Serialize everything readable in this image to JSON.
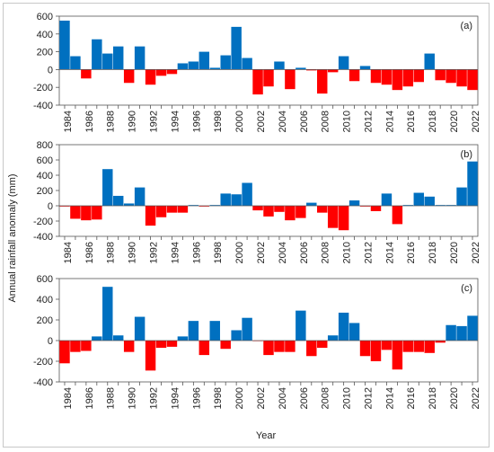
{
  "chart_data": {
    "type": "bar",
    "xlabel": "Year",
    "ylabel": "Annual rainfall anomaly (mm)",
    "positive_color": "#0070c0",
    "negative_color": "#ff0000",
    "years": [
      1984,
      1985,
      1986,
      1987,
      1988,
      1989,
      1990,
      1991,
      1992,
      1993,
      1994,
      1995,
      1996,
      1997,
      1998,
      1999,
      2000,
      2001,
      2002,
      2003,
      2004,
      2005,
      2006,
      2007,
      2008,
      2009,
      2010,
      2011,
      2012,
      2013,
      2014,
      2015,
      2016,
      2017,
      2018,
      2019,
      2020,
      2021,
      2022
    ],
    "xtick_labels": [
      "1984",
      "1986",
      "1988",
      "1990",
      "1992",
      "1994",
      "1996",
      "1998",
      "2000",
      "2002",
      "2004",
      "2006",
      "2008",
      "2010",
      "2012",
      "2014",
      "2016",
      "2018",
      "2020",
      "2022"
    ],
    "panels": [
      {
        "label": "(a)",
        "ylim": [
          -400,
          600
        ],
        "yticks": [
          -400,
          -200,
          0,
          200,
          400,
          600
        ],
        "values": [
          550,
          150,
          -100,
          340,
          180,
          260,
          -150,
          260,
          -170,
          -70,
          -50,
          70,
          90,
          200,
          20,
          160,
          480,
          130,
          -280,
          -190,
          90,
          -220,
          20,
          -10,
          -270,
          -30,
          150,
          -130,
          40,
          -150,
          -170,
          -230,
          -190,
          -140,
          180,
          -120,
          -150,
          -190,
          -230
        ]
      },
      {
        "label": "(b)",
        "ylim": [
          -400,
          800
        ],
        "yticks": [
          -400,
          -200,
          0,
          200,
          400,
          600,
          800
        ],
        "values": [
          -10,
          -170,
          -190,
          -180,
          480,
          130,
          30,
          240,
          -260,
          -150,
          -90,
          -90,
          10,
          -10,
          10,
          160,
          150,
          300,
          -60,
          -140,
          -80,
          -190,
          -160,
          40,
          -90,
          -290,
          -320,
          70,
          -10,
          -70,
          160,
          -240,
          10,
          170,
          120,
          10,
          10,
          240,
          580
        ]
      },
      {
        "label": "(c)",
        "ylim": [
          -400,
          600
        ],
        "yticks": [
          -400,
          -200,
          0,
          200,
          400,
          600
        ],
        "values": [
          -220,
          -110,
          -100,
          40,
          520,
          50,
          -110,
          230,
          -290,
          -70,
          -60,
          40,
          190,
          -140,
          190,
          -80,
          100,
          220,
          -5,
          -140,
          -110,
          -110,
          290,
          -150,
          -70,
          50,
          270,
          170,
          -150,
          -200,
          -90,
          -280,
          -110,
          -110,
          -120,
          -20,
          150,
          140,
          240
        ]
      }
    ]
  }
}
